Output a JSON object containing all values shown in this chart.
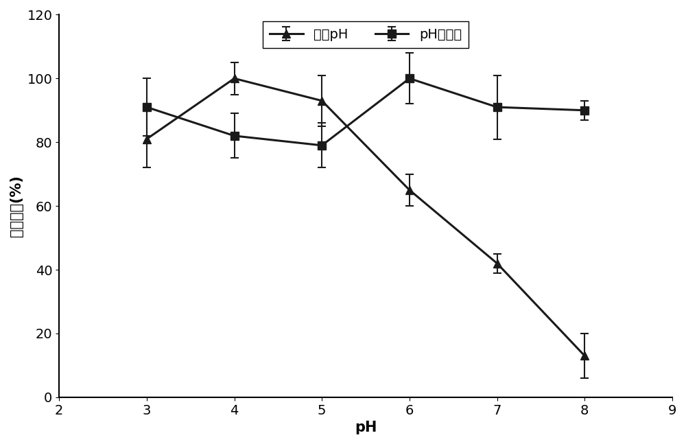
{
  "x": [
    3,
    4,
    5,
    6,
    7,
    8
  ],
  "optimal_ph_y": [
    81,
    100,
    93,
    65,
    42,
    13
  ],
  "optimal_ph_yerr": [
    9,
    5,
    8,
    5,
    3,
    7
  ],
  "ph_stability_y": [
    91,
    82,
    79,
    100,
    91,
    90
  ],
  "ph_stability_yerr": [
    9,
    7,
    7,
    8,
    10,
    3
  ],
  "xlabel": "pH",
  "ylabel": "相对酶活(%)",
  "legend_optimal": "最适pH",
  "legend_stability": "pH稳定性",
  "xlim": [
    2,
    9
  ],
  "ylim": [
    0,
    120
  ],
  "yticks": [
    0,
    20,
    40,
    60,
    80,
    100,
    120
  ],
  "xticks": [
    2,
    3,
    4,
    5,
    6,
    7,
    8,
    9
  ],
  "line_color": "#1a1a1a",
  "bg_color": "#ffffff",
  "label_fontsize": 15,
  "tick_fontsize": 14,
  "legend_fontsize": 14,
  "linewidth": 2.2,
  "markersize": 9
}
